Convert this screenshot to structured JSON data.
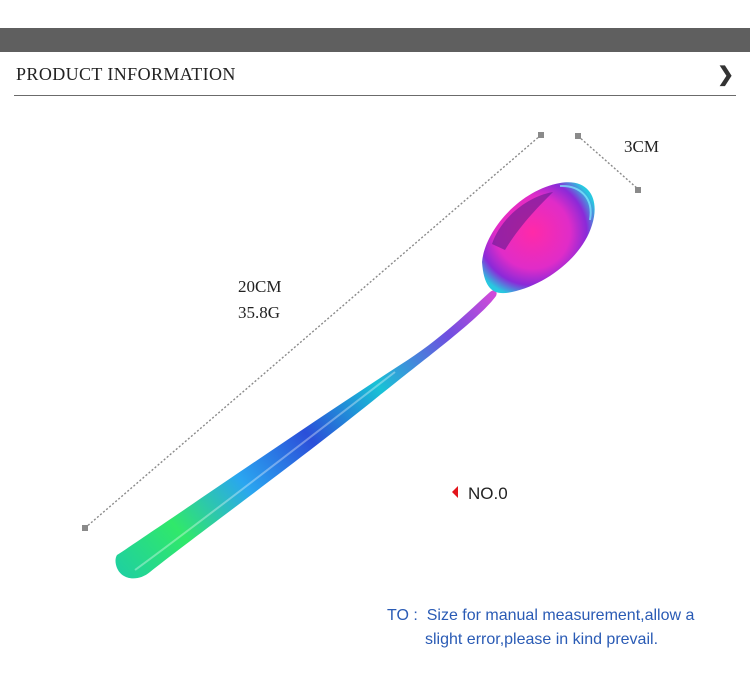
{
  "header": {
    "title": "PRODUCT INFORMATION",
    "next_icon": "chevron-right-icon"
  },
  "dimensions": {
    "length": "20CM",
    "weight": "35.8G",
    "width": "3CM"
  },
  "product": {
    "model": "NO.0",
    "marker_color": "#e3141b"
  },
  "note": {
    "prefix": "TO :",
    "line1": "Size for manual measurement,allow a",
    "line2": "slight error,please in kind prevail."
  },
  "colors": {
    "topbar": "#5f5f5f",
    "note_text": "#2a5bb5"
  }
}
